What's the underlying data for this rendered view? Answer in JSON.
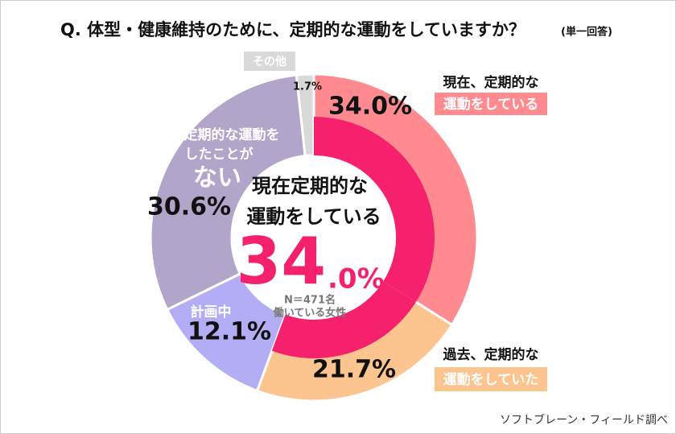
{
  "chart_data": {
    "type": "donut",
    "title": "Q.  体型・健康維持のために、定期的な運動をしていますか？",
    "subtitle": "(単一回答)",
    "categories": [
      [
        "現在、定期的な",
        "運動をしている"
      ],
      [
        "過去、定期的な",
        "運動をしていた"
      ],
      [
        "計画中"
      ],
      [
        "定期的な運動を",
        "したことが",
        "ない"
      ],
      [
        "その他"
      ]
    ],
    "values": [
      34.0,
      21.7,
      12.1,
      30.6,
      1.7
    ],
    "value_labels": [
      "34.0%",
      "21.7%",
      "12.1%",
      "30.6%",
      "1.7%"
    ],
    "colors": [
      "#ff8a8f",
      "#fcc58f",
      "#b2adf5",
      "#b1a5c9",
      "#d9d9d9"
    ],
    "inner_ring": {
      "color": "#f5216d",
      "segments": [
        0,
        1
      ]
    },
    "center": {
      "lines": [
        "現在定期的な",
        "運動をしている"
      ],
      "value_int": "34",
      "value_dec": ".0%",
      "note": [
        "N＝471名",
        "働いている女性"
      ]
    },
    "source": "ソフトブレーン・フィールド調べ"
  }
}
